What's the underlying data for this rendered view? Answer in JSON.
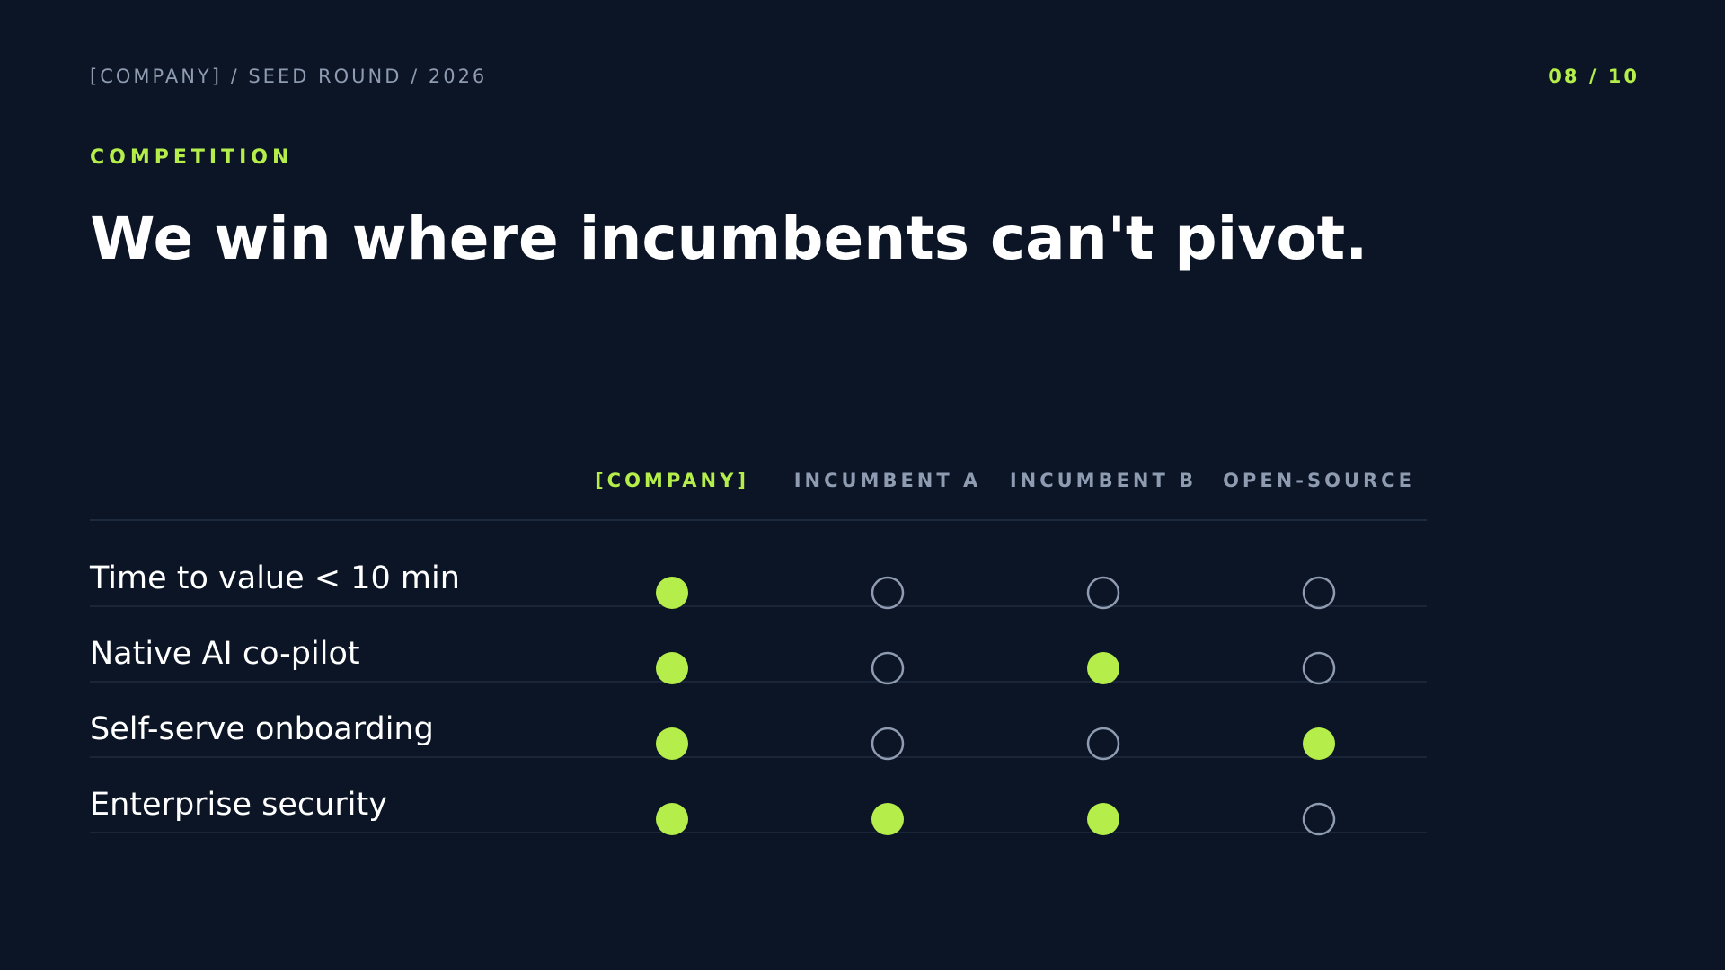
{
  "header": {
    "meta": "[COMPANY] / SEED ROUND / 2026",
    "page": "08 / 10"
  },
  "eyebrow": "COMPETITION",
  "title": "We win where incumbents can't pivot.",
  "table": {
    "columns": [
      "[COMPANY]",
      "INCUMBENT A",
      "INCUMBENT B",
      "OPEN-SOURCE"
    ],
    "highlight_column": 0,
    "rows": [
      {
        "label": "Time to value < 10 min",
        "values": [
          true,
          false,
          false,
          false
        ]
      },
      {
        "label": "Native AI co-pilot",
        "values": [
          true,
          false,
          true,
          false
        ]
      },
      {
        "label": "Self-serve onboarding",
        "values": [
          true,
          false,
          false,
          true
        ]
      },
      {
        "label": "Enterprise security",
        "values": [
          true,
          true,
          true,
          false
        ]
      }
    ]
  }
}
